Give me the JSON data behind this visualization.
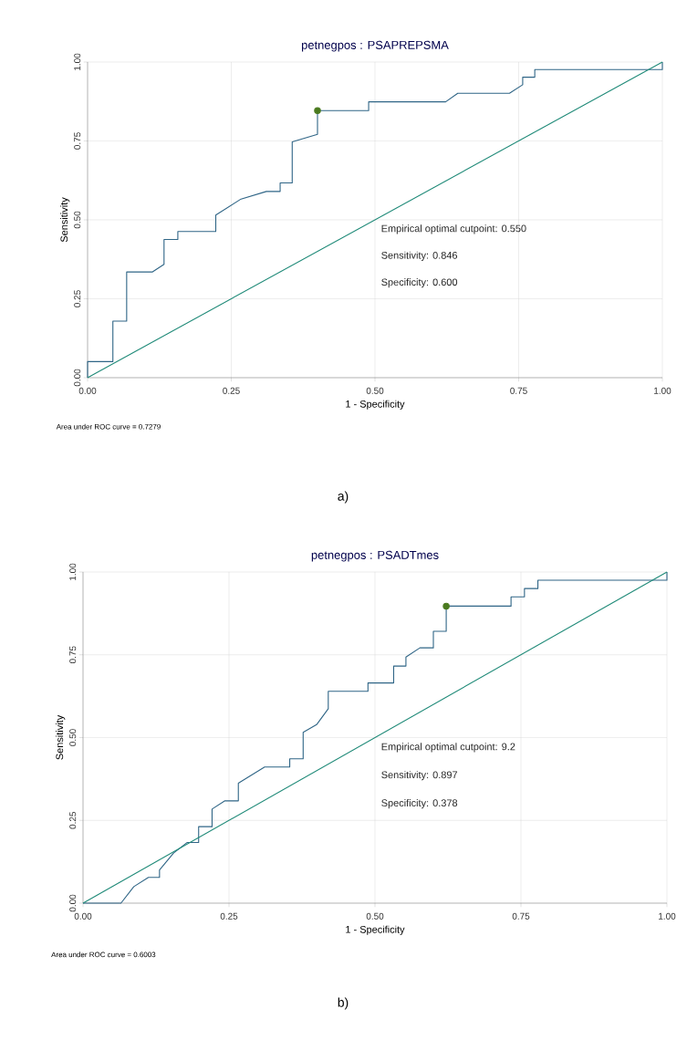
{
  "chart_data": [
    {
      "type": "line",
      "title": "petnegpos : PSAPREPSMA",
      "xlabel": "1 - Specificity",
      "ylabel": "Sensitivity",
      "xlim": [
        0,
        1
      ],
      "ylim": [
        0,
        1
      ],
      "grid": true,
      "xticks": [
        {
          "value": 0,
          "label": "0.00"
        },
        {
          "value": 0.25,
          "label": "0.25"
        },
        {
          "value": 0.5,
          "label": "0.50"
        },
        {
          "value": 0.75,
          "label": "0.75"
        },
        {
          "value": 1,
          "label": "1.00"
        }
      ],
      "yticks": [
        {
          "value": 0,
          "label": "0.00"
        },
        {
          "value": 0.25,
          "label": "0.25"
        },
        {
          "value": 0.5,
          "label": "0.50"
        },
        {
          "value": 0.75,
          "label": "0.75"
        },
        {
          "value": 1,
          "label": "1.00"
        }
      ],
      "series": [
        {
          "color": "#2f6586",
          "x": [
            0,
            0,
            0.044,
            0.044,
            0.068,
            0.068,
            0.113,
            0.133,
            0.133,
            0.157,
            0.157,
            0.223,
            0.223,
            0.267,
            0.311,
            0.335,
            0.335,
            0.356,
            0.356,
            0.4,
            0.4,
            0.489,
            0.489,
            0.623,
            0.644,
            0.734,
            0.757,
            0.757,
            0.778,
            0.778,
            1,
            1
          ],
          "values": [
            0,
            0.051,
            0.051,
            0.179,
            0.179,
            0.335,
            0.335,
            0.359,
            0.438,
            0.438,
            0.463,
            0.463,
            0.515,
            0.566,
            0.59,
            0.59,
            0.617,
            0.617,
            0.747,
            0.771,
            0.846,
            0.846,
            0.874,
            0.874,
            0.901,
            0.901,
            0.928,
            0.952,
            0.952,
            0.976,
            0.976,
            1
          ]
        },
        {
          "type": "line",
          "color": "#1f8a78",
          "x": [
            0,
            1
          ],
          "values": [
            0,
            1
          ]
        },
        {
          "type": "scatter",
          "color": "#4a7a1e",
          "x": [
            0.4
          ],
          "values": [
            0.846
          ]
        }
      ],
      "annotations": [
        "Empirical optimal cutpoint:     0.550",
        "Sensitivity:     0.846",
        "Specificity:     0.600",
        "Area under ROC curve = 0.7279",
        "a)"
      ]
    },
    {
      "type": "line",
      "title": "petnegpos : PSADTmes",
      "xlabel": "1 - Specificity",
      "ylabel": "Sensitivity",
      "xlim": [
        0,
        1
      ],
      "ylim": [
        0,
        1
      ],
      "grid": true,
      "xticks": [
        {
          "value": 0,
          "label": "0.00"
        },
        {
          "value": 0.25,
          "label": "0.25"
        },
        {
          "value": 0.5,
          "label": "0.50"
        },
        {
          "value": 0.75,
          "label": "0.75"
        },
        {
          "value": 1,
          "label": "1.00"
        }
      ],
      "yticks": [
        {
          "value": 0,
          "label": "0.00"
        },
        {
          "value": 0.25,
          "label": "0.25"
        },
        {
          "value": 0.5,
          "label": "0.50"
        },
        {
          "value": 0.75,
          "label": "0.75"
        },
        {
          "value": 1,
          "label": "1.00"
        }
      ],
      "series": [
        {
          "color": "#2f6586",
          "x": [
            0,
            0.065,
            0.087,
            0.112,
            0.131,
            0.131,
            0.155,
            0.178,
            0.198,
            0.198,
            0.221,
            0.221,
            0.243,
            0.266,
            0.266,
            0.311,
            0.354,
            0.354,
            0.377,
            0.377,
            0.4,
            0.42,
            0.42,
            0.488,
            0.488,
            0.532,
            0.532,
            0.553,
            0.553,
            0.577,
            0.6,
            0.6,
            0.622,
            0.622,
            0.733,
            0.733,
            0.756,
            0.756,
            0.779,
            0.779,
            1,
            1
          ],
          "values": [
            0,
            0,
            0.05,
            0.078,
            0.078,
            0.1,
            0.151,
            0.183,
            0.183,
            0.231,
            0.231,
            0.284,
            0.309,
            0.309,
            0.362,
            0.411,
            0.411,
            0.436,
            0.436,
            0.516,
            0.539,
            0.587,
            0.64,
            0.64,
            0.665,
            0.665,
            0.716,
            0.716,
            0.743,
            0.771,
            0.771,
            0.821,
            0.821,
            0.897,
            0.897,
            0.925,
            0.925,
            0.95,
            0.95,
            0.975,
            0.975,
            1
          ]
        },
        {
          "type": "line",
          "color": "#1f8a78",
          "x": [
            0,
            1
          ],
          "values": [
            0,
            1
          ]
        },
        {
          "type": "scatter",
          "color": "#4a7a1e",
          "x": [
            0.622
          ],
          "values": [
            0.897
          ]
        }
      ],
      "annotations": [
        "Empirical optimal cutpoint:     9.2",
        "Sensitivity:     0.897",
        "Specificity:     0.378",
        "Area under ROC curve = 0.6003",
        "b)"
      ]
    }
  ]
}
